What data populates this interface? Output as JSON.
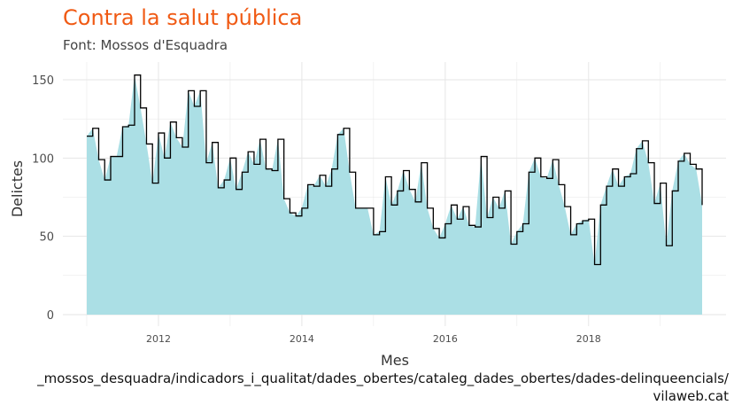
{
  "title": "Contra la salut pública",
  "subtitle": "Font: Mossos d'Esquadra",
  "caption_line1": "_mossos_desquadra/indicadors_i_qualitat/dades_obertes/cataleg_dades_obertes/dades-delinqueencials/",
  "caption_line2": "vilaweb.cat",
  "colors": {
    "title": "#f05a14",
    "area_fill": "#abdfe5",
    "step_line": "#000000",
    "grid": "#e6e6e6"
  },
  "chart_data": {
    "type": "area",
    "overlay": "step",
    "title": "Contra la salut pública",
    "subtitle": "Font: Mossos d'Esquadra",
    "xlabel": "Mes",
    "ylabel": "Delictes",
    "x_ticks": [
      "2012",
      "2014",
      "2016",
      "2018"
    ],
    "y_ticks": [
      0,
      50,
      100,
      150
    ],
    "ylim": [
      0,
      160
    ],
    "xlim": [
      "2010-09",
      "2019-12"
    ],
    "grid": true,
    "legend": "none",
    "x_start": "2011-01",
    "x_step": "month",
    "values": [
      114,
      119,
      99,
      86,
      101,
      101,
      120,
      121,
      153,
      132,
      109,
      84,
      116,
      100,
      123,
      113,
      107,
      143,
      133,
      143,
      97,
      110,
      81,
      86,
      100,
      80,
      91,
      104,
      96,
      112,
      93,
      92,
      112,
      74,
      65,
      63,
      68,
      83,
      82,
      89,
      82,
      93,
      115,
      119,
      91,
      68,
      68,
      68,
      51,
      53,
      88,
      70,
      79,
      92,
      80,
      72,
      97,
      68,
      55,
      49,
      58,
      70,
      61,
      69,
      57,
      56,
      101,
      62,
      75,
      68,
      79,
      45,
      53,
      58,
      91,
      100,
      88,
      87,
      99,
      83,
      69,
      51,
      58,
      60,
      61,
      32,
      70,
      82,
      93,
      82,
      88,
      90,
      106,
      111,
      97,
      71,
      84,
      44,
      79,
      98,
      103,
      96,
      93,
      70
    ]
  }
}
